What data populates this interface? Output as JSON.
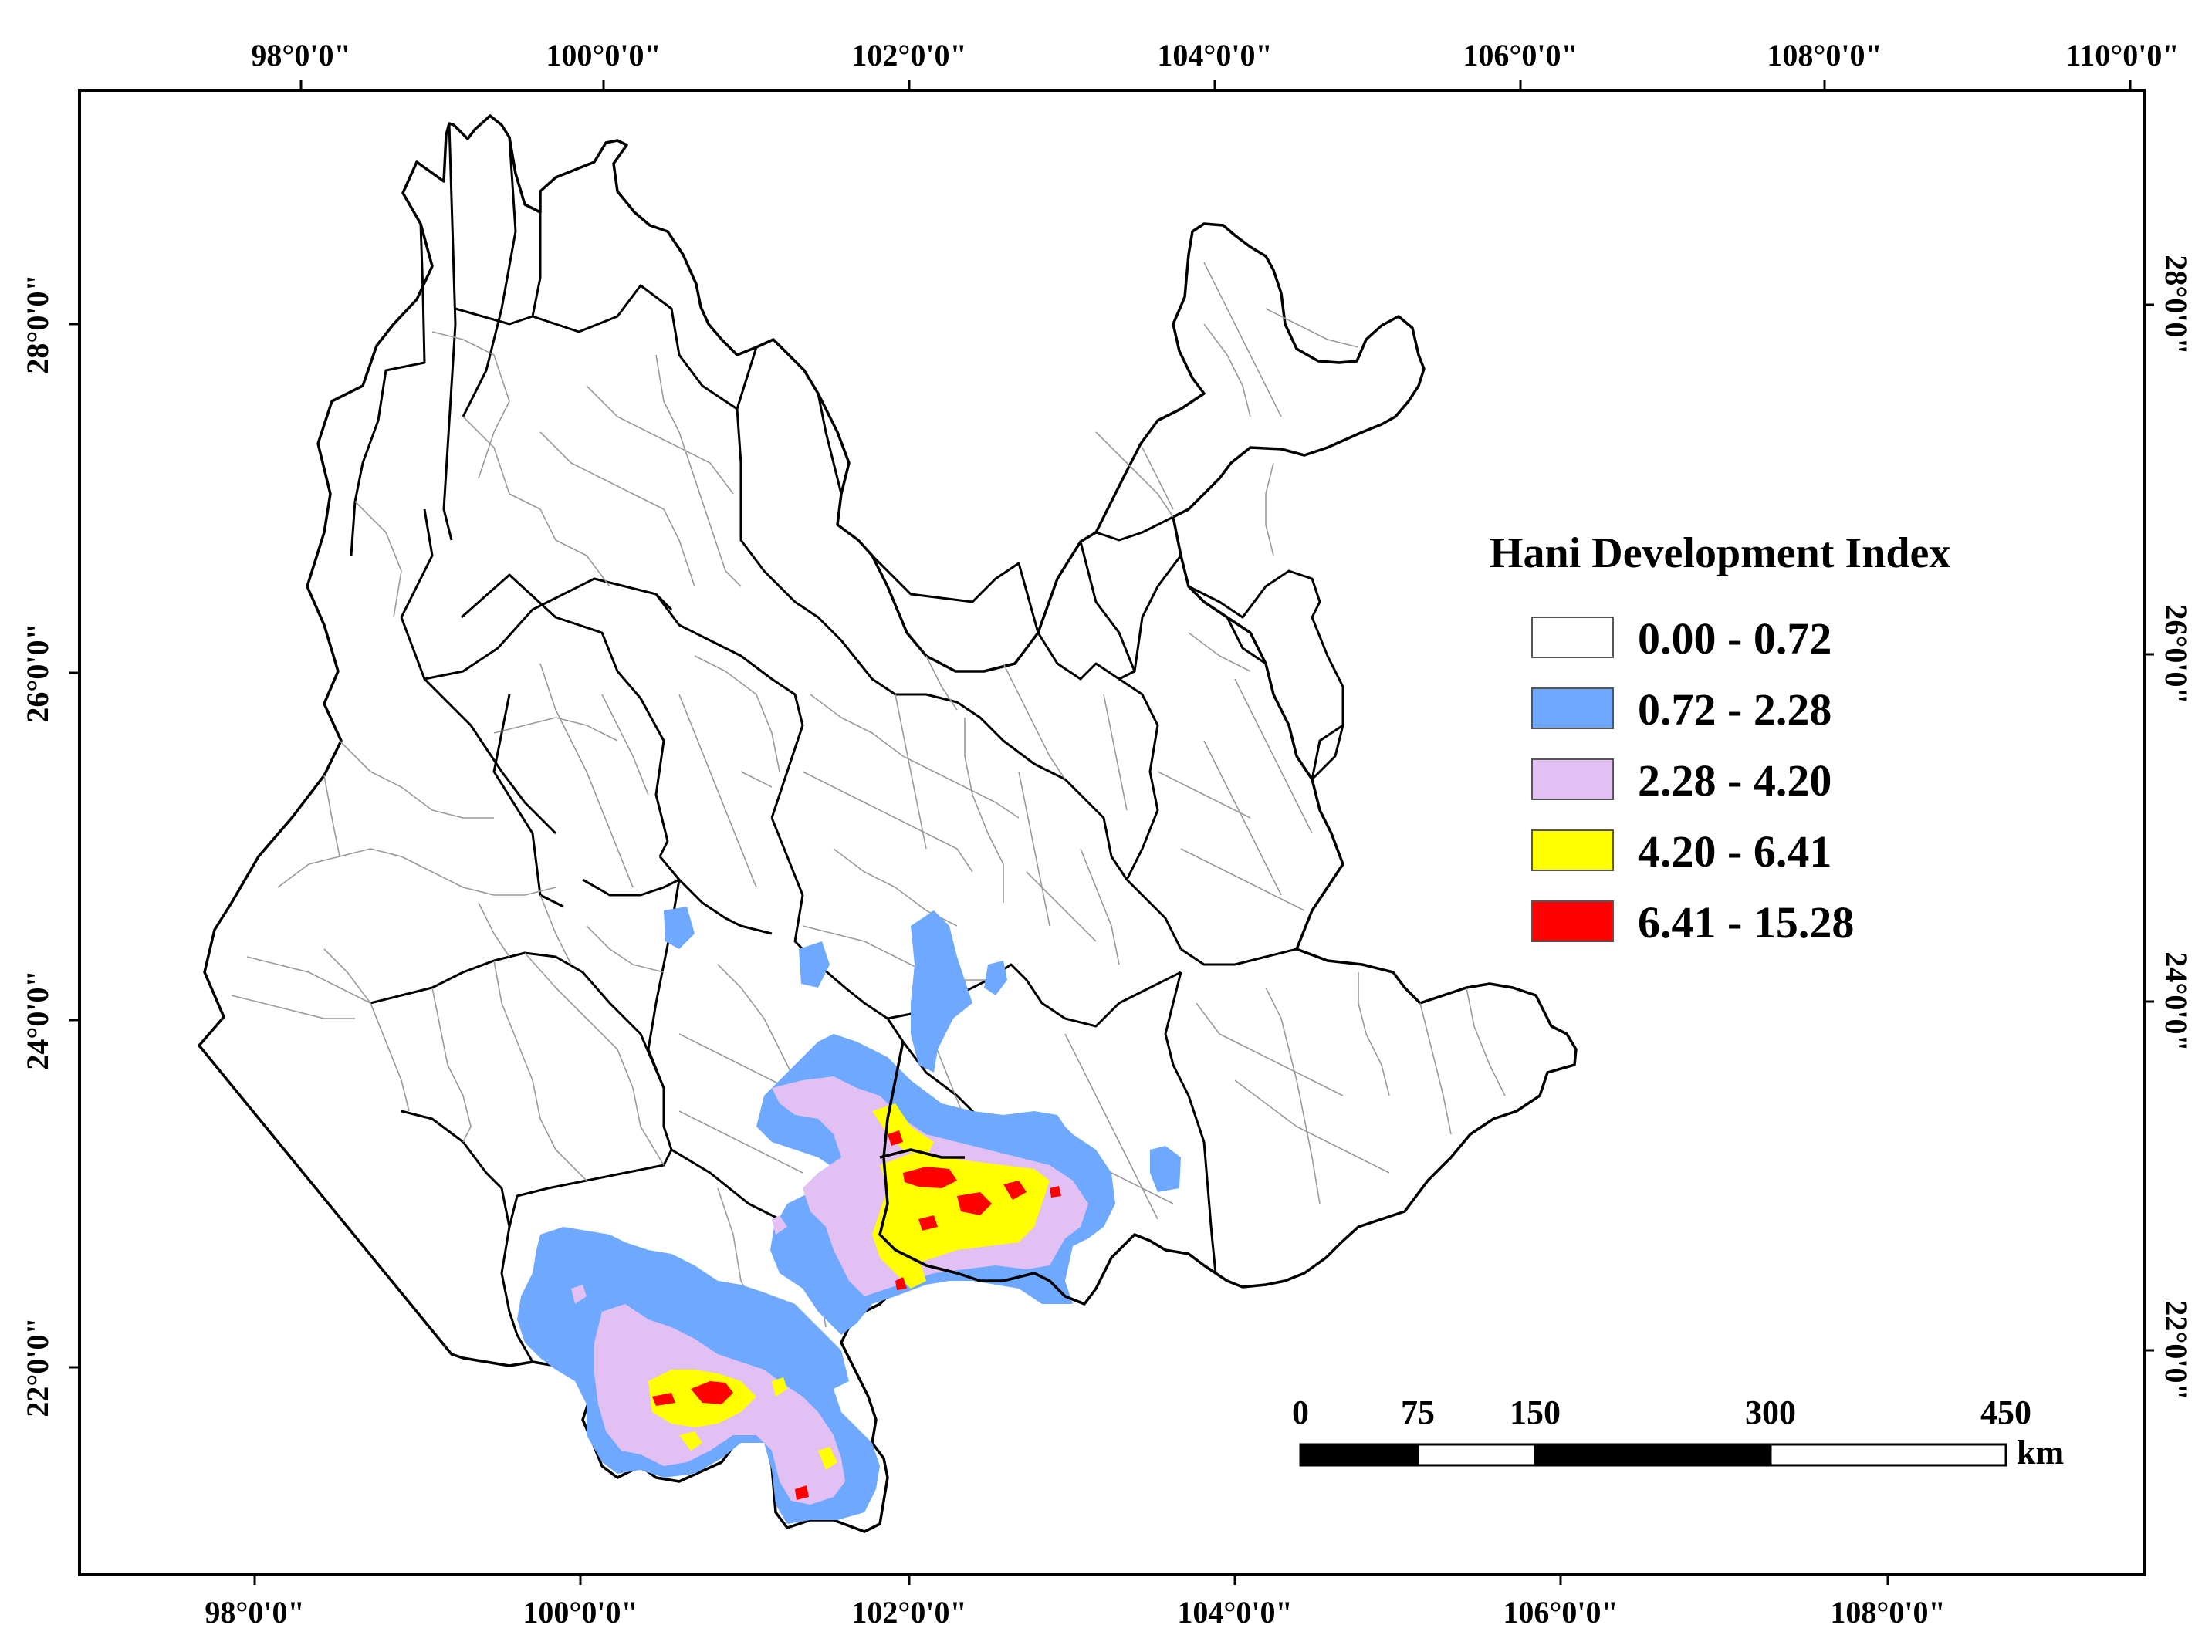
{
  "map": {
    "top_lon_labels": [
      "98°0'0\"",
      "100°0'0\"",
      "102°0'0\"",
      "104°0'0\"",
      "106°0'0\"",
      "108°0'0\"",
      "110°0'0\""
    ],
    "bottom_lon_labels": [
      "98°0'0\"",
      "100°0'0\"",
      "102°0'0\"",
      "104°0'0\"",
      "106°0'0\"",
      "108°0'0\""
    ],
    "left_lat_labels": [
      "28°0'0\"",
      "26°0'0\"",
      "24°0'0\"",
      "22°0'0\""
    ],
    "right_lat_labels": [
      "28°0'0\"",
      "26°0'0\"",
      "24°0'0\"",
      "22°0'0\""
    ]
  },
  "legend": {
    "title": "Hani Development Index",
    "classes": [
      {
        "label": "0.00 - 0.72",
        "color": "#ffffff"
      },
      {
        "label": "0.72 - 2.28",
        "color": "#6fa8ff"
      },
      {
        "label": "2.28 - 4.20",
        "color": "#e2c0f4"
      },
      {
        "label": "4.20 - 6.41",
        "color": "#ffff00"
      },
      {
        "label": "6.41 - 15.28",
        "color": "#ff0000"
      }
    ]
  },
  "scale_bar": {
    "ticks": [
      "0",
      "75",
      "150",
      "300",
      "450"
    ],
    "unit": "km"
  }
}
